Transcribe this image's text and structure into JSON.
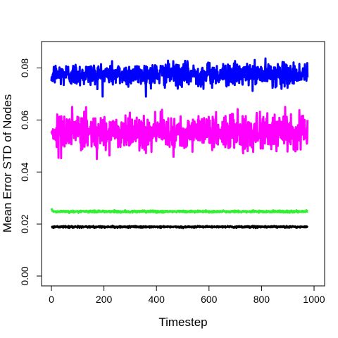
{
  "chart_data": {
    "type": "line",
    "title": "",
    "xlabel": "Timestep",
    "ylabel": "Mean Error STD of Nodes",
    "xlim": [
      0,
      1000
    ],
    "ylim": [
      0,
      0.085
    ],
    "xticks": [
      0,
      200,
      400,
      600,
      800,
      1000
    ],
    "yticks": [
      0.0,
      0.02,
      0.04,
      0.06,
      0.08
    ],
    "xtick_labels": [
      "0",
      "200",
      "400",
      "600",
      "800",
      "1000"
    ],
    "ytick_labels": [
      "0.00",
      "0.02",
      "0.04",
      "0.06",
      "0.08"
    ],
    "grid": false,
    "legend": "none",
    "x_range": [
      0,
      975
    ],
    "series": [
      {
        "color": "#0000FF",
        "mean": 0.0775,
        "noise_sd": 0.0022,
        "min": 0.069,
        "max": 0.086,
        "initial": 0.075
      },
      {
        "color": "#FF00FF",
        "mean": 0.0555,
        "noise_sd": 0.0033,
        "min": 0.045,
        "max": 0.065,
        "initial": 0.0555
      },
      {
        "color": "#33EE33",
        "mean": 0.0248,
        "noise_sd": 0.0002,
        "min": 0.024,
        "max": 0.026,
        "initial": 0.026
      },
      {
        "color": "#000000",
        "mean": 0.0189,
        "noise_sd": 0.00015,
        "min": 0.0183,
        "max": 0.0195,
        "initial": 0.0188
      }
    ]
  }
}
